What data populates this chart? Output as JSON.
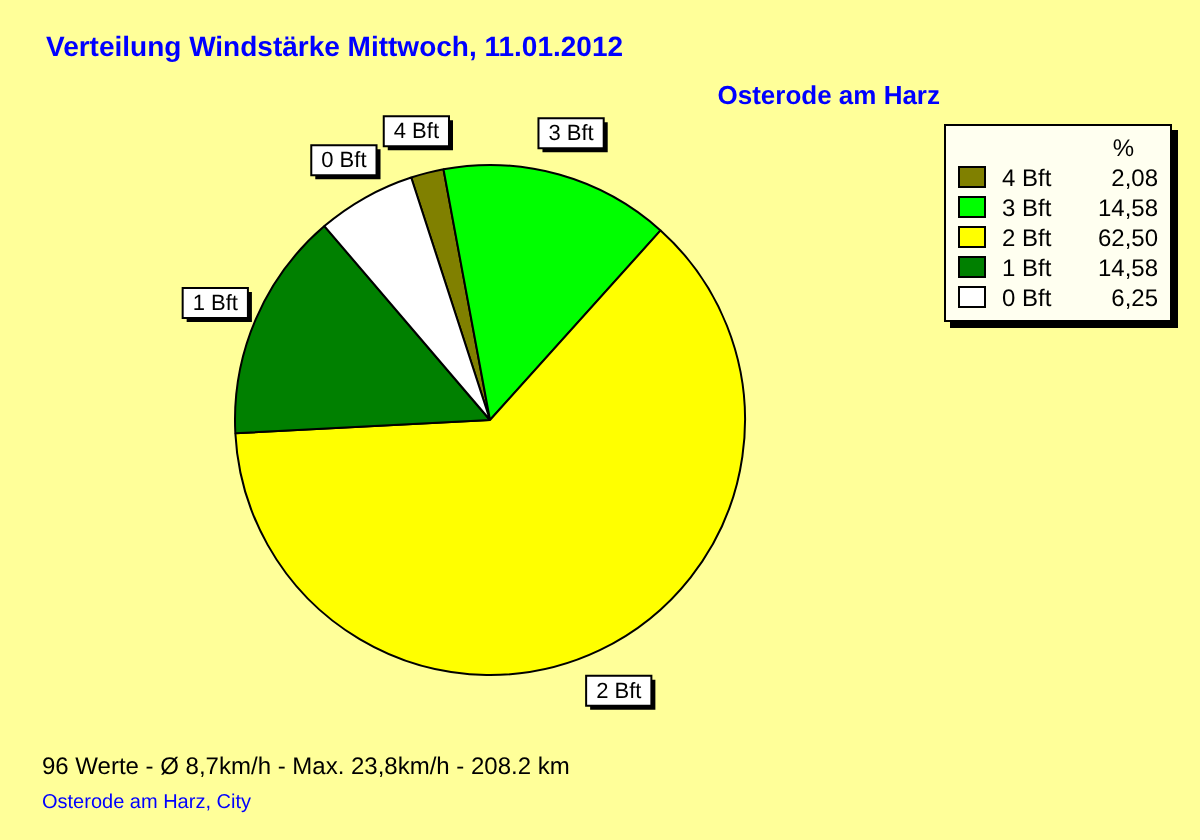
{
  "chart_data": {
    "type": "pie",
    "title": "Verteilung Windstärke  Mittwoch, 11.01.2012",
    "subtitle": "Osterode am Harz",
    "legend_title": "%",
    "legend": "top right",
    "categories": [
      "4 Bft",
      "3 Bft",
      "2 Bft",
      "1 Bft",
      "0 Bft"
    ],
    "values": [
      2.08,
      14.58,
      62.5,
      14.58,
      6.25
    ],
    "value_labels": [
      "2,08",
      "14,58",
      "62,50",
      "14,58",
      "6,25"
    ],
    "colors": [
      "#808000",
      "#00ff00",
      "#ffff00",
      "#008000",
      "#ffffff"
    ],
    "annotations": [
      "96 Werte   -   Ø 8,7km/h  -  Max. 23,8km/h   -   208.2 km",
      "Osterode am Harz, City"
    ]
  }
}
